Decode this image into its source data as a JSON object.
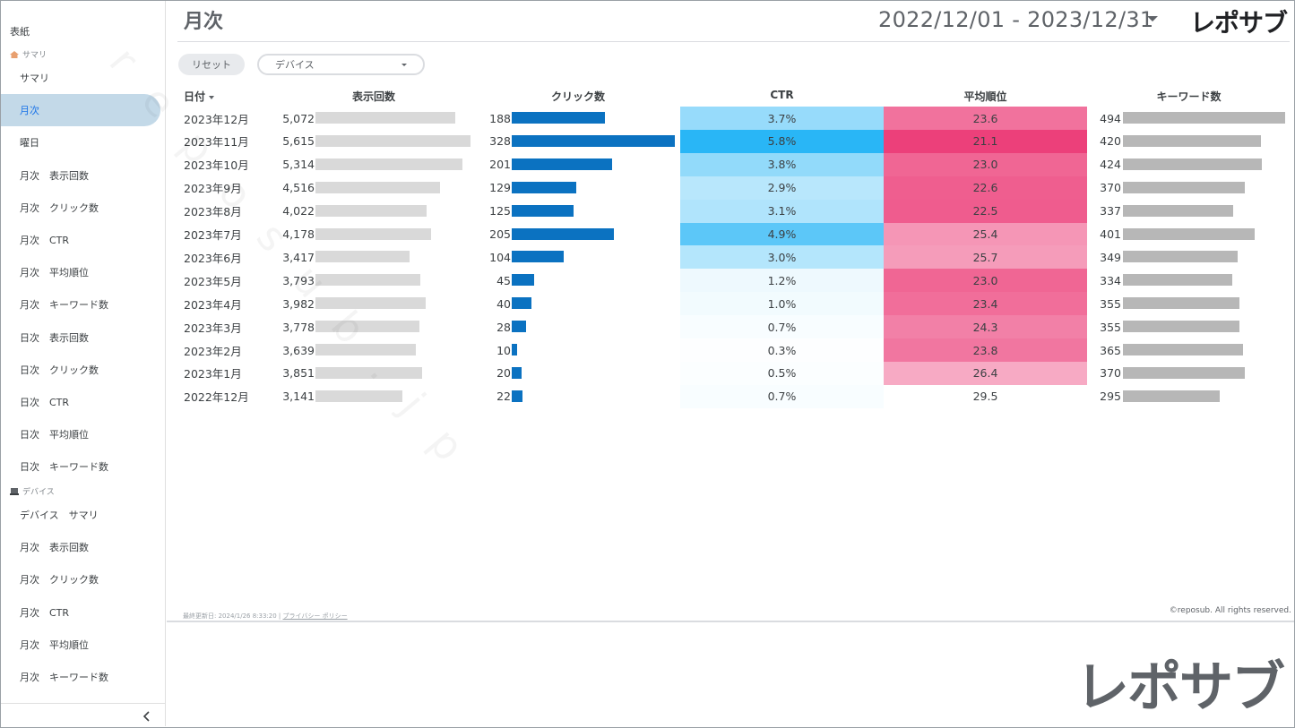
{
  "sidebar": {
    "cover": "表紙",
    "section_summary": "サマリ",
    "items_summary": [
      "サマリ",
      "月次",
      "曜日",
      "月次　表示回数",
      "月次　クリック数",
      "月次　CTR",
      "月次　平均順位",
      "月次　キーワード数",
      "日次　表示回数",
      "日次　クリック数",
      "日次　CTR",
      "日次　平均順位",
      "日次　キーワード数"
    ],
    "section_device": "デバイス",
    "items_device": [
      "デバイス　サマリ",
      "月次　表示回数",
      "月次　クリック数",
      "月次　CTR",
      "月次　平均順位",
      "月次　キーワード数"
    ],
    "active_item": "月次"
  },
  "header": {
    "title": "月次",
    "date_range": "2022/12/01 - 2023/12/31",
    "logo": "レポサブ"
  },
  "filters": {
    "reset_label": "リセット",
    "device_label": "デバイス"
  },
  "table": {
    "columns": [
      "日付",
      "表示回数",
      "クリック数",
      "CTR",
      "平均順位",
      "キーワード数"
    ],
    "rows": [
      {
        "date": "2023年12月",
        "impressions": "5,072",
        "clicks": "188",
        "ctr": "3.7%",
        "position": "23.6",
        "keywords": "494",
        "imp": 5072,
        "clk": 188,
        "ctr_v": 3.7,
        "pos_v": 23.6,
        "kw": 494
      },
      {
        "date": "2023年11月",
        "impressions": "5,615",
        "clicks": "328",
        "ctr": "5.8%",
        "position": "21.1",
        "keywords": "420",
        "imp": 5615,
        "clk": 328,
        "ctr_v": 5.8,
        "pos_v": 21.1,
        "kw": 420
      },
      {
        "date": "2023年10月",
        "impressions": "5,314",
        "clicks": "201",
        "ctr": "3.8%",
        "position": "23.0",
        "keywords": "424",
        "imp": 5314,
        "clk": 201,
        "ctr_v": 3.8,
        "pos_v": 23.0,
        "kw": 424
      },
      {
        "date": "2023年9月",
        "impressions": "4,516",
        "clicks": "129",
        "ctr": "2.9%",
        "position": "22.6",
        "keywords": "370",
        "imp": 4516,
        "clk": 129,
        "ctr_v": 2.9,
        "pos_v": 22.6,
        "kw": 370
      },
      {
        "date": "2023年8月",
        "impressions": "4,022",
        "clicks": "125",
        "ctr": "3.1%",
        "position": "22.5",
        "keywords": "337",
        "imp": 4022,
        "clk": 125,
        "ctr_v": 3.1,
        "pos_v": 22.5,
        "kw": 337
      },
      {
        "date": "2023年7月",
        "impressions": "4,178",
        "clicks": "205",
        "ctr": "4.9%",
        "position": "25.4",
        "keywords": "401",
        "imp": 4178,
        "clk": 205,
        "ctr_v": 4.9,
        "pos_v": 25.4,
        "kw": 401
      },
      {
        "date": "2023年6月",
        "impressions": "3,417",
        "clicks": "104",
        "ctr": "3.0%",
        "position": "25.7",
        "keywords": "349",
        "imp": 3417,
        "clk": 104,
        "ctr_v": 3.0,
        "pos_v": 25.7,
        "kw": 349
      },
      {
        "date": "2023年5月",
        "impressions": "3,793",
        "clicks": "45",
        "ctr": "1.2%",
        "position": "23.0",
        "keywords": "334",
        "imp": 3793,
        "clk": 45,
        "ctr_v": 1.2,
        "pos_v": 23.0,
        "kw": 334
      },
      {
        "date": "2023年4月",
        "impressions": "3,982",
        "clicks": "40",
        "ctr": "1.0%",
        "position": "23.4",
        "keywords": "355",
        "imp": 3982,
        "clk": 40,
        "ctr_v": 1.0,
        "pos_v": 23.4,
        "kw": 355
      },
      {
        "date": "2023年3月",
        "impressions": "3,778",
        "clicks": "28",
        "ctr": "0.7%",
        "position": "24.3",
        "keywords": "355",
        "imp": 3778,
        "clk": 28,
        "ctr_v": 0.7,
        "pos_v": 24.3,
        "kw": 355
      },
      {
        "date": "2023年2月",
        "impressions": "3,639",
        "clicks": "10",
        "ctr": "0.3%",
        "position": "23.8",
        "keywords": "365",
        "imp": 3639,
        "clk": 10,
        "ctr_v": 0.3,
        "pos_v": 23.8,
        "kw": 365
      },
      {
        "date": "2023年1月",
        "impressions": "3,851",
        "clicks": "20",
        "ctr": "0.5%",
        "position": "26.4",
        "keywords": "370",
        "imp": 3851,
        "clk": 20,
        "ctr_v": 0.5,
        "pos_v": 26.4,
        "kw": 370
      },
      {
        "date": "2022年12月",
        "impressions": "3,141",
        "clicks": "22",
        "ctr": "0.7%",
        "position": "29.5",
        "keywords": "295",
        "imp": 3141,
        "clk": 22,
        "ctr_v": 0.7,
        "pos_v": 29.5,
        "kw": 295
      }
    ],
    "colors": {
      "impressions_bar": "#d9d9d9",
      "clicks_bar": "#0b72c1",
      "keywords_bar": "#b7b7b7",
      "ctr_heat_max": "#29b6f6",
      "position_heat_max": "#ec407a"
    }
  },
  "footer": {
    "updated": "最終更新日: 2024/1/26 8:33:20",
    "privacy": "プライバシー ポリシー",
    "copyright": "©reposub. All rights reserved."
  },
  "watermark": "reposub.jp",
  "brand_logo": "レポサブ",
  "icons": {
    "summary_section": "home-icon",
    "device_section": "laptop-icon",
    "collapse": "chevron-left-icon",
    "date_dropdown": "caret-down-icon"
  }
}
